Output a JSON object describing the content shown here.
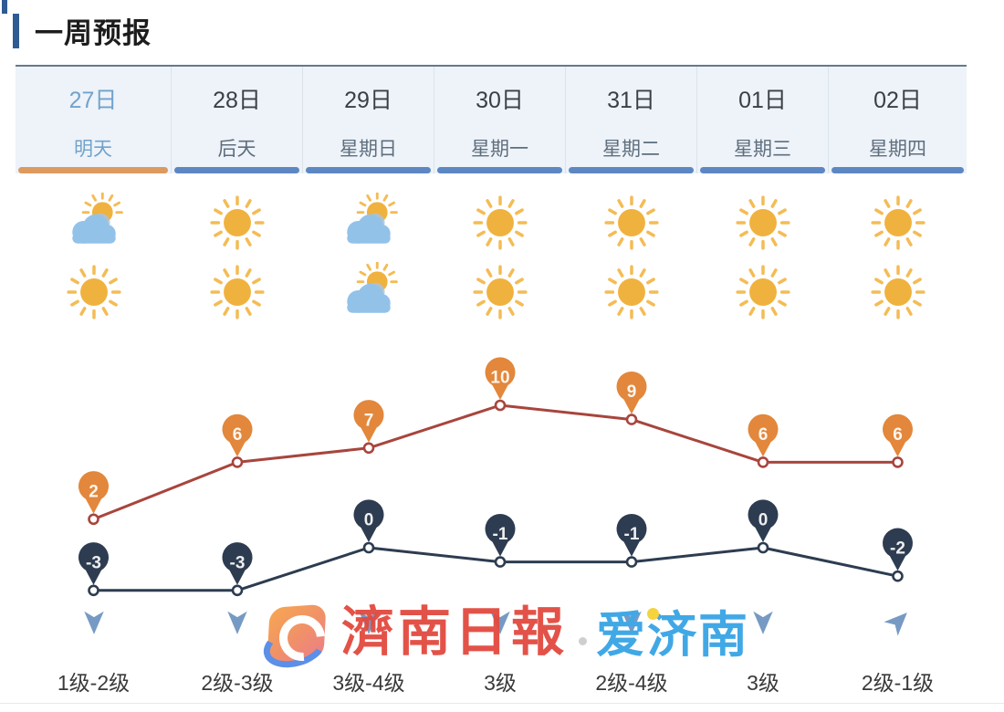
{
  "title": "一周预报",
  "days": [
    {
      "date": "27日",
      "name": "明天",
      "selected": true,
      "day_icon": "partly-cloudy",
      "night_icon": "sunny",
      "high": 2,
      "low": -3,
      "wind_level": "1级-2级",
      "wind_dir": "down"
    },
    {
      "date": "28日",
      "name": "后天",
      "selected": false,
      "day_icon": "sunny",
      "night_icon": "sunny",
      "high": 6,
      "low": -3,
      "wind_level": "2级-3级",
      "wind_dir": "down"
    },
    {
      "date": "29日",
      "name": "星期日",
      "selected": false,
      "day_icon": "partly-cloudy",
      "night_icon": "partly-cloudy",
      "high": 7,
      "low": 0,
      "wind_level": "3级-4级",
      "wind_dir": "down"
    },
    {
      "date": "30日",
      "name": "星期一",
      "selected": false,
      "day_icon": "sunny",
      "night_icon": "sunny",
      "high": 10,
      "low": -1,
      "wind_level": "3级",
      "wind_dir": "down"
    },
    {
      "date": "31日",
      "name": "星期二",
      "selected": false,
      "day_icon": "sunny",
      "night_icon": "sunny",
      "high": 9,
      "low": -1,
      "wind_level": "2级-4级",
      "wind_dir": "down"
    },
    {
      "date": "01日",
      "name": "星期三",
      "selected": false,
      "day_icon": "sunny",
      "night_icon": "sunny",
      "high": 6,
      "low": 0,
      "wind_level": "3级",
      "wind_dir": "down"
    },
    {
      "date": "02日",
      "name": "星期四",
      "selected": false,
      "day_icon": "sunny",
      "night_icon": "sunny",
      "high": 6,
      "low": -2,
      "wind_level": "2级-1级",
      "wind_dir": "up-right"
    }
  ],
  "chart_data": {
    "type": "line",
    "categories": [
      "27日",
      "28日",
      "29日",
      "30日",
      "31日",
      "01日",
      "02日"
    ],
    "series": [
      {
        "name": "high-temperature",
        "values": [
          2,
          6,
          7,
          10,
          9,
          6,
          6
        ]
      },
      {
        "name": "low-temperature",
        "values": [
          -3,
          -3,
          0,
          -1,
          -1,
          0,
          -2
        ]
      }
    ],
    "unit": "℃",
    "ylim": [
      -3,
      10
    ],
    "grid": false,
    "legend": "none"
  },
  "watermark": {
    "logo": "jinan-daily-logo",
    "newspaper": "濟南日報",
    "app": "爱济南"
  },
  "colors": {
    "accent_bar": "#2e5b94",
    "table_top_border": "#67798a",
    "header_bg": "#edf3f9",
    "selected_text": "#72a2cb",
    "date_text": "#3a3f46",
    "dayname_text": "#5f6e7e",
    "underline_selected": "#dc9a5f",
    "underline_normal": "#5d87c3",
    "high_line": "#a8453d",
    "high_pin": "#e2873b",
    "low_line": "#2d3c50",
    "low_pin": "#2d3c50",
    "sun": "#f0b23e",
    "cloud": "#93c2e9",
    "wind_arrow": "#769ac3",
    "watermark_red": "#e2493f",
    "watermark_blue": "#41a8e6"
  }
}
